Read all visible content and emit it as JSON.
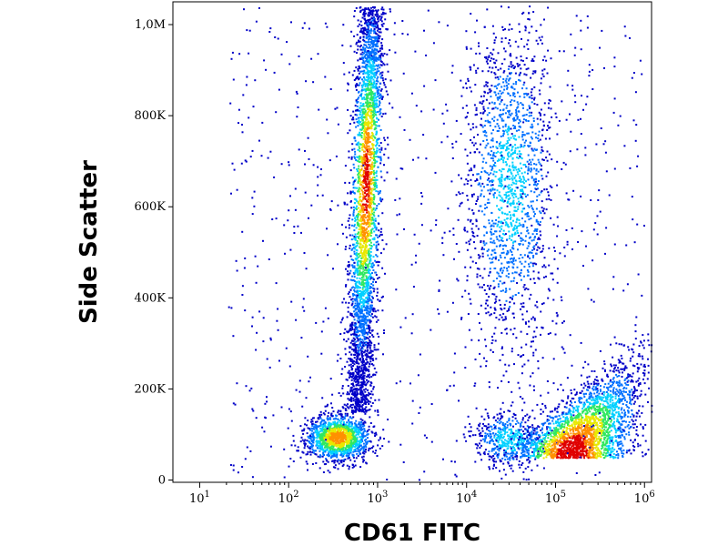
{
  "chart_data": {
    "type": "heatmap",
    "subtype": "flow-cytometry-density-dot-plot",
    "xlabel": "CD61 FITC",
    "ylabel": "Side Scatter",
    "x_scale": "log",
    "y_scale": "linear",
    "xlim": [
      5,
      1200000
    ],
    "ylim": [
      -5000,
      1050000
    ],
    "x_ticks": [
      {
        "value": 10,
        "base": "10",
        "exp": "1"
      },
      {
        "value": 100,
        "base": "10",
        "exp": "2"
      },
      {
        "value": 1000,
        "base": "10",
        "exp": "3"
      },
      {
        "value": 10000,
        "base": "10",
        "exp": "4"
      },
      {
        "value": 100000,
        "base": "10",
        "exp": "5"
      },
      {
        "value": 1000000,
        "base": "10",
        "exp": "6"
      }
    ],
    "y_ticks": [
      {
        "value": 0,
        "label": "0"
      },
      {
        "value": 200000,
        "label": "200K"
      },
      {
        "value": 400000,
        "label": "400K"
      },
      {
        "value": 600000,
        "label": "600K"
      },
      {
        "value": 800000,
        "label": "800K"
      },
      {
        "value": 1000000,
        "label": "1,0M"
      }
    ],
    "grid": false,
    "legend": "none",
    "colormap": [
      "#0000c8",
      "#0070ff",
      "#00d0ff",
      "#30e860",
      "#e8e800",
      "#ff9000",
      "#e00000"
    ],
    "populations": [
      {
        "x_center": 350,
        "x_spread_decades": 0.18,
        "y_center": 95000,
        "y_spread": 25000,
        "peak_density": 0.8
      },
      {
        "x_center": 600,
        "x_spread_decades": 0.08,
        "y_from": 150000,
        "y_to": 1040000,
        "x_at_top": 850,
        "peak_density": 0.9,
        "peak_y": 650000
      },
      {
        "x_center": 30000,
        "x_spread_decades": 0.25,
        "y_center": 650000,
        "y_spread": 180000,
        "peak_density": 0.35
      },
      {
        "x_center": 30000,
        "x_spread_decades": 0.2,
        "y_center": 90000,
        "y_spread": 30000,
        "peak_density": 0.4
      },
      {
        "x_center": 150000,
        "x_spread_decades": 0.3,
        "y_center": 80000,
        "y_spread": 40000,
        "x_at_y_300000": 900000,
        "peak_density": 1.0
      }
    ]
  }
}
